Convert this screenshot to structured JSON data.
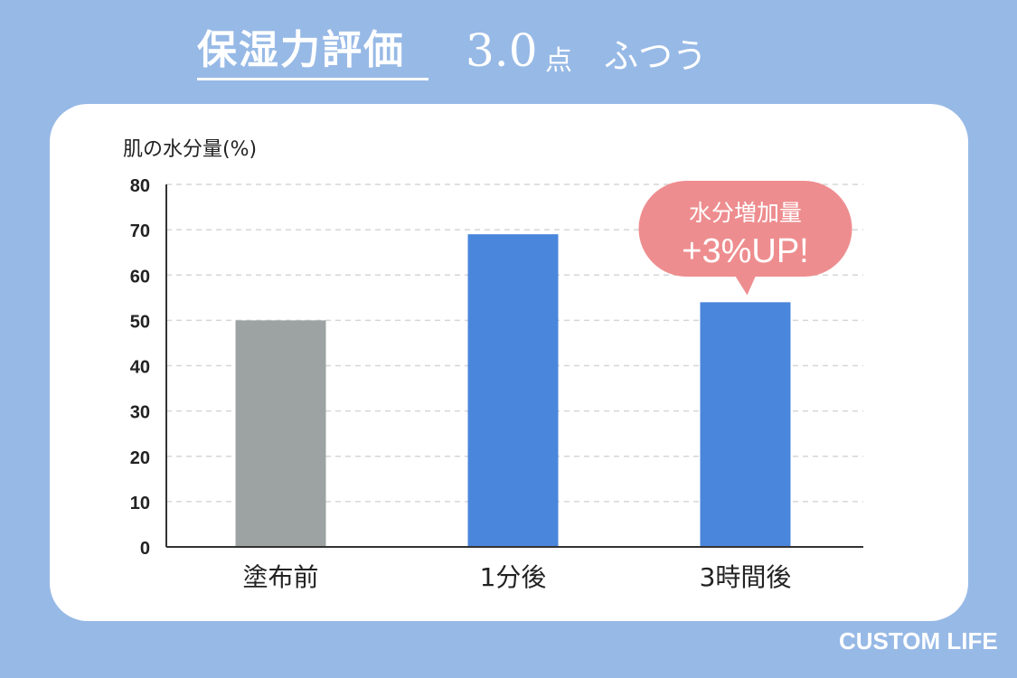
{
  "header": {
    "title": "保湿力評価",
    "score": "3.0",
    "score_unit": "点",
    "score_text": "ふつう"
  },
  "chart_data": {
    "type": "bar",
    "ylabel": "肌の水分量(%)",
    "categories": [
      "塗布前",
      "1分後",
      "3時間後"
    ],
    "values": [
      50,
      69,
      54
    ],
    "bar_colors": [
      "#9da3a2",
      "#4a86dc",
      "#4a86dc"
    ],
    "ylim": [
      0,
      80
    ],
    "yticks": [
      0,
      10,
      20,
      30,
      40,
      50,
      60,
      70,
      80
    ],
    "grid": true,
    "annotation": {
      "line1": "水分増加量",
      "line2": "+3%UP!",
      "color": "#ee8d8f",
      "target": "3時間後"
    }
  },
  "brand": "CUSTOM LIFE",
  "colors": {
    "background": "#97b9e6",
    "card": "#ffffff",
    "axis": "#333333",
    "grid": "#d6d6d6"
  }
}
